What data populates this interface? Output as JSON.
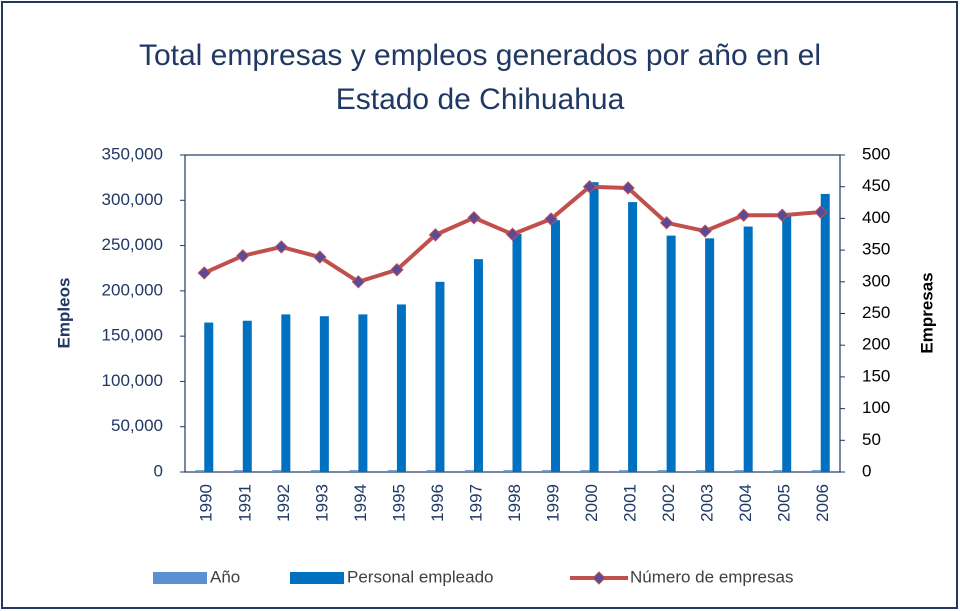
{
  "chart_data": {
    "type": "bar_line",
    "title": "Total empresas y empleos generados por año en el Estado de Chihuahua",
    "y_label": "Empleos",
    "y2_label": "Empresas",
    "categories": [
      "1990",
      "1991",
      "1992",
      "1993",
      "1994",
      "1995",
      "1996",
      "1997",
      "1998",
      "1999",
      "2000",
      "2001",
      "2002",
      "2003",
      "2004",
      "2005",
      "2006"
    ],
    "series": [
      {
        "name": "Año",
        "type": "bar",
        "color": "#5b8fd0",
        "values": [
          1990,
          1991,
          1992,
          1993,
          1994,
          1995,
          1996,
          1997,
          1998,
          1999,
          2000,
          2001,
          2002,
          2003,
          2004,
          2005,
          2006
        ]
      },
      {
        "name": "Personal empleado",
        "type": "bar",
        "color": "#0070c0",
        "values": [
          165000,
          167000,
          174000,
          172000,
          174000,
          185000,
          210000,
          235000,
          263000,
          278000,
          320000,
          298000,
          261000,
          258000,
          271000,
          283000,
          307000
        ]
      },
      {
        "name": "Número de empresas",
        "type": "line",
        "axis": "y2",
        "color": "#c0504d",
        "marker_color": "#5a4a9a",
        "values": [
          314,
          341,
          355,
          339,
          300,
          319,
          374,
          401,
          375,
          399,
          450,
          448,
          393,
          380,
          405,
          405,
          410
        ]
      }
    ],
    "ylim": [
      0,
      350000
    ],
    "yticks": [
      0,
      {
        "value": 50000,
        "label": "50,000"
      },
      {
        "value": 100000,
        "label": "100,000"
      },
      {
        "value": 150000,
        "label": "150,000"
      },
      {
        "value": 200000,
        "label": "200,000"
      },
      {
        "value": 250000,
        "label": "250,000"
      },
      {
        "value": 300000,
        "label": "300,000"
      },
      {
        "value": 350000,
        "label": "350,000"
      }
    ],
    "y2lim": [
      0,
      500
    ],
    "y2ticks": [
      0,
      50,
      100,
      150,
      200,
      250,
      300,
      350,
      400,
      450,
      500
    ],
    "legend": "bottom"
  }
}
